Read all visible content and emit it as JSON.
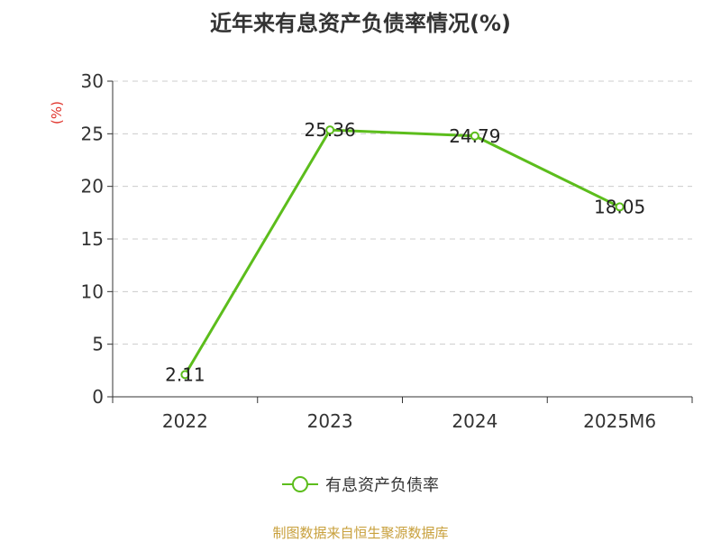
{
  "chart_data": {
    "type": "line",
    "title": "近年来有息资产负债率情况(%)",
    "ylabel": "(%)",
    "categories": [
      "2022",
      "2023",
      "2024",
      "2025M6"
    ],
    "series": [
      {
        "name": "有息资产负债率",
        "values": [
          2.11,
          25.36,
          24.79,
          18.05
        ],
        "color": "#5cbd1c"
      }
    ],
    "data_labels": [
      "2.11",
      "25.36",
      "24.79",
      "18.05"
    ],
    "ylim": [
      0,
      30
    ],
    "yticks": [
      "0",
      "5",
      "10",
      "15",
      "20",
      "25",
      "30"
    ],
    "grid": true,
    "legend_position": "bottom"
  },
  "source_note": "制图数据来自恒生聚源数据库",
  "colors": {
    "line": "#5cbd1c",
    "ylabel": "#e0332b",
    "source": "#c8a03c"
  }
}
